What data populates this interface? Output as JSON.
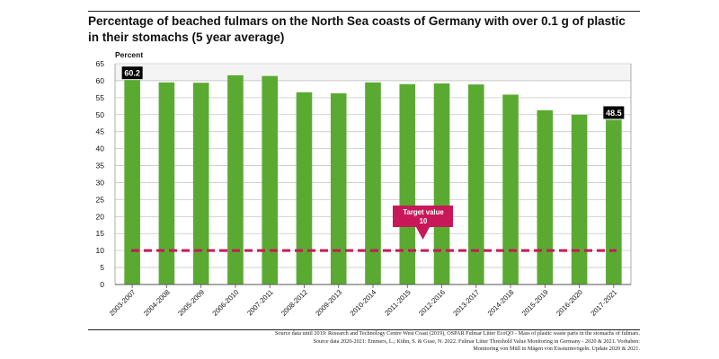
{
  "title": "Percentage of beached fulmars on the North Sea coasts of Germany with over 0.1 g of plastic in their stomachs (5 year average)",
  "source_lines": [
    "Source data until 2019: Research and Technology Centre West Coast (2019), OSPAR Fulmar Litter EcoQO - Mass of plastic waste parts in the stomachs of fulmars.",
    "Source data 2020-2021: Emmers, L.; Kühn, S. & Guse, N. 2022. Fulmar Litter Threshold Value Monitoring in Germany - 2020 & 2021. Vorhaben:",
    "Monitoring von Müll in Mägen von Eissturmvögeln. Update 2020 & 2021."
  ],
  "colors": {
    "bar": "#5aaa32",
    "target": "#c8185a",
    "grid": "#c8c8c8",
    "label_bg": "#000000"
  },
  "chart_data": {
    "type": "bar",
    "title": "Percentage of beached fulmars on the North Sea coasts of Germany with over 0.1 g of plastic in their stomachs (5 year average)",
    "ylabel": "Percent",
    "xlabel": "",
    "ylim": [
      0,
      65
    ],
    "yticks": [
      0,
      5,
      10,
      15,
      20,
      25,
      30,
      35,
      40,
      45,
      50,
      55,
      60,
      65
    ],
    "categories": [
      "2003-2007",
      "2004-2008",
      "2005-2009",
      "2006-2010",
      "2007-2011",
      "2008-2012",
      "2009-2013",
      "2010-2014",
      "2011-2015",
      "2012-2016",
      "2013-2017",
      "2014-2018",
      "2015-2019",
      "2016-2020",
      "2017-2021"
    ],
    "values": [
      60.2,
      59.5,
      59.4,
      61.6,
      61.4,
      56.6,
      56.3,
      59.5,
      59.0,
      59.2,
      58.9,
      55.9,
      51.3,
      50.0,
      48.5
    ],
    "data_labels": [
      {
        "index": 0,
        "text": "60.2"
      },
      {
        "index": 14,
        "text": "48.5"
      }
    ],
    "target": {
      "value": 10,
      "label_line1": "Target value",
      "label_line2": "10"
    },
    "grid": true
  }
}
